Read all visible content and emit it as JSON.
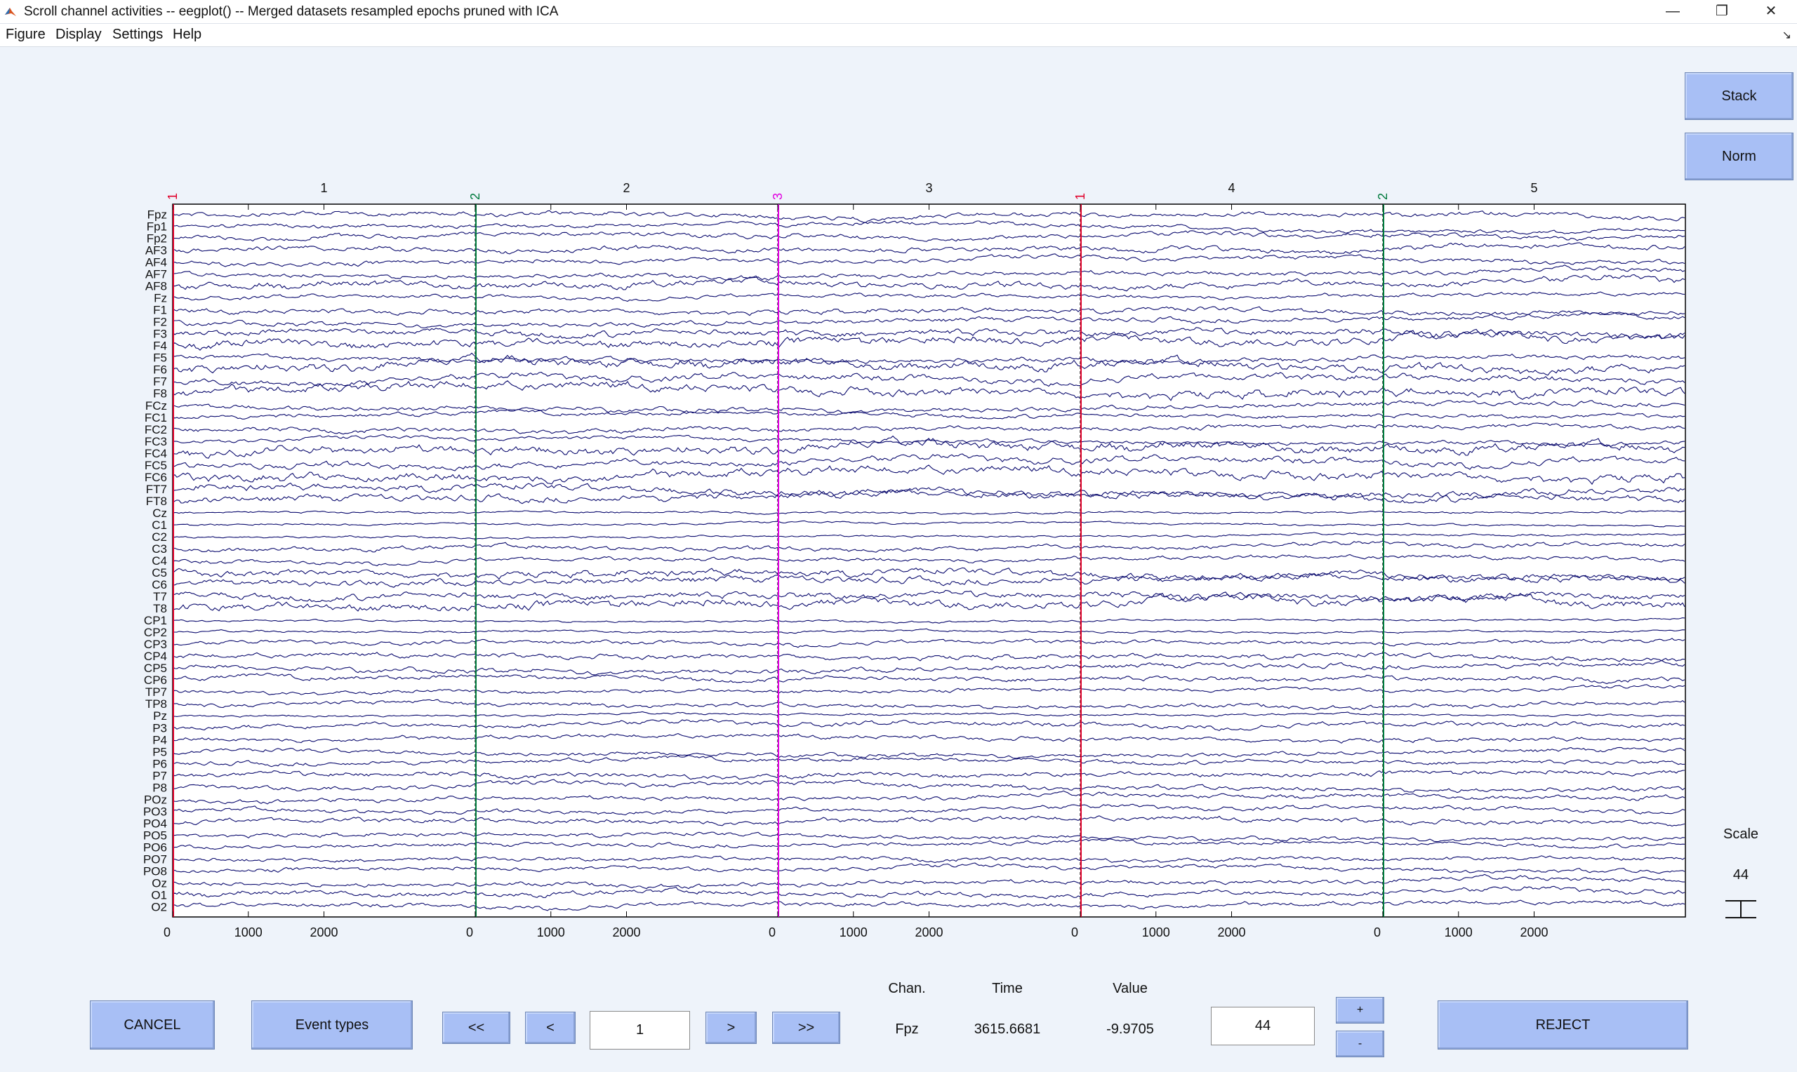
{
  "window": {
    "title": "Scroll channel activities -- eegplot() -- Merged datasets resampled epochs pruned with ICA",
    "controls": {
      "minimize": "—",
      "restore": "❐",
      "close": "✕"
    }
  },
  "menu": {
    "items": [
      "Figure",
      "Display",
      "Settings",
      "Help"
    ]
  },
  "side_buttons": {
    "stack": "Stack",
    "norm": "Norm"
  },
  "scale_panel": {
    "label": "Scale",
    "value": "44"
  },
  "plot": {
    "channels": [
      "Fpz",
      "Fp1",
      "Fp2",
      "AF3",
      "AF4",
      "AF7",
      "AF8",
      "Fz",
      "F1",
      "F2",
      "F3",
      "F4",
      "F5",
      "F6",
      "F7",
      "F8",
      "FCz",
      "FC1",
      "FC2",
      "FC3",
      "FC4",
      "FC5",
      "FC6",
      "FT7",
      "FT8",
      "Cz",
      "C1",
      "C2",
      "C3",
      "C4",
      "C5",
      "C6",
      "T7",
      "T8",
      "CP1",
      "CP2",
      "CP3",
      "CP4",
      "CP5",
      "CP6",
      "TP7",
      "TP8",
      "Pz",
      "P3",
      "P4",
      "P5",
      "P6",
      "P7",
      "P8",
      "POz",
      "PO3",
      "PO4",
      "PO5",
      "PO6",
      "PO7",
      "PO8",
      "Oz",
      "O1",
      "O2"
    ],
    "epochs": [
      {
        "number": "1",
        "event": "1",
        "event_color": "#e0002a",
        "ticks": [
          "0",
          "1000",
          "2000"
        ]
      },
      {
        "number": "2",
        "event": "2",
        "event_color": "#007a3d",
        "ticks": [
          "0",
          "1000",
          "2000"
        ]
      },
      {
        "number": "3",
        "event": "3",
        "event_color": "#e000e0",
        "ticks": [
          "0",
          "1000",
          "2000"
        ]
      },
      {
        "number": "4",
        "event": "1",
        "event_color": "#e0002a",
        "ticks": [
          "0",
          "1000",
          "2000"
        ]
      },
      {
        "number": "5",
        "event": "2",
        "event_color": "#007a3d",
        "ticks": [
          "0",
          "1000",
          "2000"
        ]
      }
    ],
    "trace_color": "#0b0b6e"
  },
  "bottom": {
    "cancel": "CANCEL",
    "event_types": "Event types",
    "first": "<<",
    "prev": "<",
    "epoch_value": "1",
    "next": ">",
    "last": ">>",
    "chan_label": "Chan.",
    "time_label": "Time",
    "value_label": "Value",
    "chan_value": "Fpz",
    "time_value": "3615.6681",
    "value_value": "-9.9705",
    "scale_value": "44",
    "plus": "+",
    "minus": "-",
    "reject": "REJECT"
  }
}
